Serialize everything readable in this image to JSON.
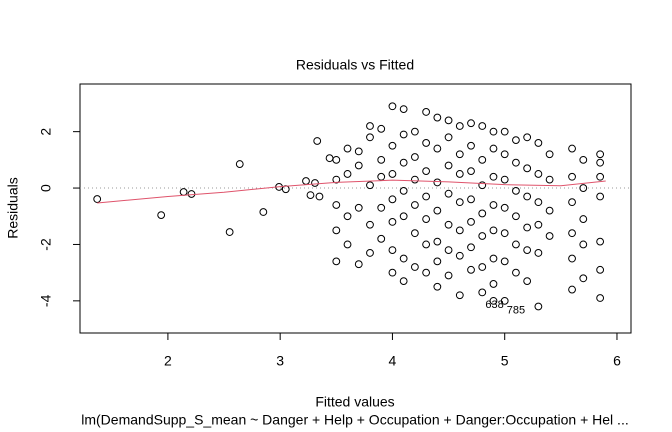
{
  "chart_data": {
    "type": "scatter",
    "title": "Residuals vs Fitted",
    "x_label": "Fitted values",
    "y_label": "Residuals",
    "subtitle": "lm(DemandSupp_S_mean ~ Danger + Help + Occupation + Danger:Occupation + Hel ...",
    "xlim": [
      1.217,
      6.125
    ],
    "ylim": [
      -5.14,
      3.69
    ],
    "xticks": [
      2,
      3,
      4,
      5,
      6
    ],
    "yticks": [
      -4,
      -2,
      0,
      2
    ],
    "color": "#000000",
    "x": [
      1.37,
      1.94,
      2.14,
      2.21,
      2.55,
      2.64,
      2.85,
      2.99,
      3.05,
      3.23,
      3.27,
      3.33,
      3.31,
      3.35,
      3.44,
      3.5,
      3.5,
      3.5,
      3.5,
      3.5,
      3.6,
      3.6,
      3.6,
      3.6,
      3.7,
      3.7,
      3.7,
      3.7,
      3.8,
      3.8,
      3.8,
      3.8,
      3.8,
      3.9,
      3.9,
      3.9,
      3.9,
      3.9,
      4.0,
      4.0,
      4.0,
      4.0,
      4.0,
      4.0,
      4.0,
      4.1,
      4.1,
      4.1,
      4.1,
      4.1,
      4.1,
      4.1,
      4.2,
      4.2,
      4.2,
      4.2,
      4.2,
      4.2,
      4.3,
      4.3,
      4.3,
      4.3,
      4.3,
      4.3,
      4.3,
      4.4,
      4.4,
      4.4,
      4.4,
      4.4,
      4.4,
      4.4,
      4.5,
      4.5,
      4.5,
      4.5,
      4.5,
      4.5,
      4.5,
      4.6,
      4.6,
      4.6,
      4.6,
      4.6,
      4.6,
      4.6,
      4.7,
      4.7,
      4.7,
      4.7,
      4.7,
      4.7,
      4.7,
      4.8,
      4.8,
      4.8,
      4.8,
      4.8,
      4.8,
      4.8,
      4.9,
      4.9,
      4.9,
      4.9,
      4.9,
      4.9,
      4.9,
      4.9,
      5.0,
      5.0,
      5.0,
      5.0,
      5.0,
      5.0,
      5.0,
      5.1,
      5.1,
      5.1,
      5.1,
      5.1,
      5.1,
      5.2,
      5.2,
      5.2,
      5.2,
      5.2,
      5.2,
      5.3,
      5.3,
      5.3,
      5.3,
      5.3,
      5.3,
      5.4,
      5.4,
      5.4,
      5.4,
      5.6,
      5.6,
      5.6,
      5.6,
      5.6,
      5.6,
      5.7,
      5.7,
      5.7,
      5.7,
      5.7,
      5.85,
      5.85,
      5.85,
      5.85,
      5.85,
      5.85,
      5.85
    ],
    "y": [
      -0.39,
      -0.96,
      -0.14,
      -0.21,
      -1.56,
      0.85,
      -0.85,
      0.04,
      -0.04,
      0.25,
      -0.25,
      1.67,
      0.18,
      -0.3,
      1.06,
      1.0,
      -0.6,
      -1.5,
      -2.6,
      0.3,
      0.5,
      -1.0,
      1.4,
      -2.0,
      1.3,
      -0.7,
      -2.7,
      0.8,
      1.8,
      0.1,
      -1.3,
      2.2,
      -2.3,
      2.1,
      1.0,
      -0.7,
      -1.8,
      0.4,
      2.9,
      1.5,
      0.5,
      -0.4,
      -1.2,
      -2.2,
      -3.0,
      2.8,
      1.9,
      0.9,
      -0.1,
      -1.0,
      -2.5,
      -3.3,
      2.0,
      1.1,
      0.3,
      -0.6,
      -1.6,
      -2.8,
      2.7,
      1.6,
      0.6,
      -0.3,
      -1.1,
      -2.0,
      -3.0,
      2.5,
      1.4,
      0.2,
      -0.8,
      -1.9,
      -2.6,
      -3.5,
      2.4,
      1.8,
      0.8,
      -0.2,
      -1.3,
      -2.2,
      -3.1,
      2.2,
      1.2,
      0.5,
      -0.5,
      -1.5,
      -2.4,
      -3.8,
      2.3,
      1.5,
      0.6,
      -0.4,
      -1.2,
      -2.1,
      -2.9,
      2.2,
      1.0,
      0.1,
      -0.9,
      -1.7,
      -2.8,
      -3.7,
      2.0,
      1.4,
      0.4,
      -0.6,
      -1.5,
      -2.5,
      -3.4,
      -4.0,
      2.0,
      1.2,
      0.3,
      -0.7,
      -1.6,
      -2.6,
      -4.0,
      1.7,
      0.9,
      -0.1,
      -1.0,
      -2.0,
      -3.0,
      1.8,
      0.7,
      -0.3,
      -1.4,
      -2.2,
      -3.3,
      1.6,
      0.5,
      -0.5,
      -1.3,
      -2.3,
      -4.2,
      1.2,
      0.3,
      -0.8,
      -1.7,
      1.4,
      0.4,
      -0.5,
      -1.6,
      -2.5,
      -3.6,
      1.0,
      0.0,
      -1.1,
      -2.0,
      -3.2,
      1.2,
      0.4,
      -0.3,
      -1.9,
      -2.9,
      -3.9,
      0.9
    ],
    "smooth": {
      "color": "#df536b",
      "x": [
        1.37,
        2.0,
        2.5,
        3.0,
        3.5,
        4.0,
        4.5,
        5.0,
        5.5,
        5.9
      ],
      "y": [
        -0.53,
        -0.3,
        -0.15,
        0.05,
        0.2,
        0.28,
        0.22,
        0.12,
        0.08,
        0.25
      ]
    },
    "reference_line": {
      "value": 0,
      "color": "#999999"
    },
    "annotations": [
      {
        "text": "638",
        "x": 4.91,
        "y": -4.15
      },
      {
        "text": "785",
        "x": 5.1,
        "y": -4.35
      }
    ]
  }
}
